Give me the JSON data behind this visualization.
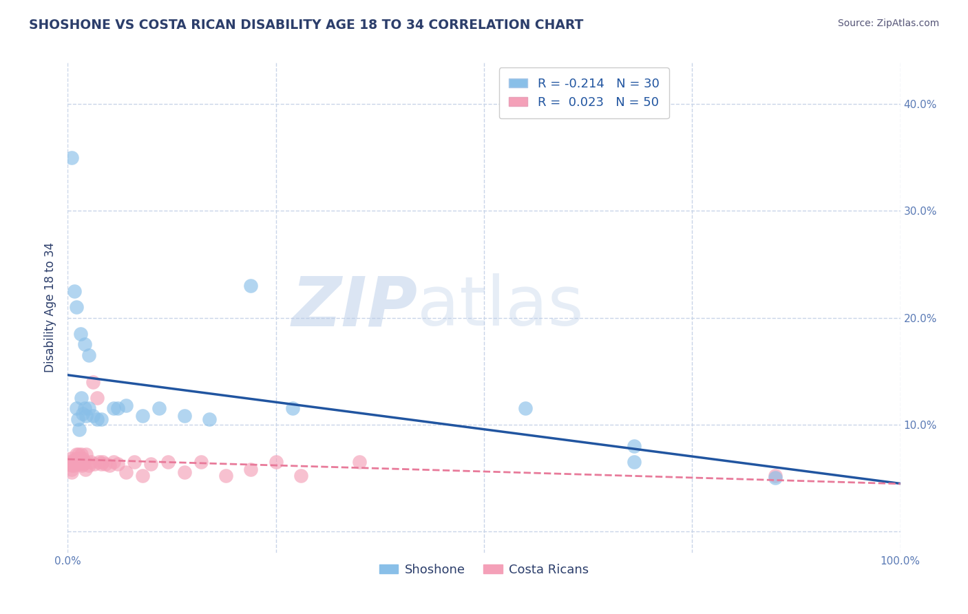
{
  "title": "SHOSHONE VS COSTA RICAN DISABILITY AGE 18 TO 34 CORRELATION CHART",
  "source": "Source: ZipAtlas.com",
  "xlabel": "",
  "ylabel": "Disability Age 18 to 34",
  "xlim": [
    0.0,
    1.0
  ],
  "ylim": [
    -0.02,
    0.44
  ],
  "xticks": [
    0.0,
    0.25,
    0.5,
    0.75,
    1.0
  ],
  "xtick_labels": [
    "0.0%",
    "",
    "",
    "",
    "100.0%"
  ],
  "yticks": [
    0.0,
    0.1,
    0.2,
    0.3,
    0.4
  ],
  "ytick_labels_right": [
    "",
    "10.0%",
    "20.0%",
    "30.0%",
    "40.0%"
  ],
  "legend_r1": "R = -0.214",
  "legend_n1": "N = 30",
  "legend_r2": "R =  0.023",
  "legend_n2": "N = 50",
  "shoshone_color": "#89bfe8",
  "costa_rican_color": "#f4a0b8",
  "shoshone_line_color": "#2155a0",
  "costa_rican_line_color": "#e87a9a",
  "watermark_zip": "ZIP",
  "watermark_atlas": "atlas",
  "background_color": "#ffffff",
  "grid_color": "#c8d4e8",
  "title_color": "#2c3e6b",
  "axis_label_color": "#2c3e6b",
  "tick_color": "#5a7ab5",
  "shoshone_x": [
    0.01,
    0.012,
    0.014,
    0.016,
    0.018,
    0.02,
    0.022,
    0.025,
    0.03,
    0.04,
    0.055,
    0.07,
    0.09,
    0.11,
    0.14,
    0.17,
    0.22,
    0.27,
    0.55,
    0.68,
    0.68,
    0.85,
    0.005,
    0.008,
    0.01,
    0.015,
    0.02,
    0.025,
    0.035,
    0.06
  ],
  "shoshone_y": [
    0.115,
    0.105,
    0.095,
    0.125,
    0.11,
    0.115,
    0.108,
    0.115,
    0.108,
    0.105,
    0.115,
    0.118,
    0.108,
    0.115,
    0.108,
    0.105,
    0.23,
    0.115,
    0.115,
    0.08,
    0.065,
    0.05,
    0.35,
    0.225,
    0.21,
    0.185,
    0.175,
    0.165,
    0.105,
    0.115
  ],
  "costa_rican_x": [
    0.002,
    0.003,
    0.004,
    0.005,
    0.005,
    0.005,
    0.006,
    0.007,
    0.008,
    0.009,
    0.01,
    0.01,
    0.011,
    0.012,
    0.013,
    0.014,
    0.015,
    0.015,
    0.016,
    0.017,
    0.018,
    0.019,
    0.02,
    0.021,
    0.022,
    0.025,
    0.028,
    0.03,
    0.032,
    0.035,
    0.038,
    0.04,
    0.042,
    0.045,
    0.05,
    0.055,
    0.06,
    0.07,
    0.08,
    0.09,
    0.1,
    0.12,
    0.14,
    0.16,
    0.19,
    0.22,
    0.25,
    0.28,
    0.35,
    0.85
  ],
  "costa_rican_y": [
    0.065,
    0.063,
    0.068,
    0.062,
    0.058,
    0.055,
    0.065,
    0.062,
    0.067,
    0.063,
    0.072,
    0.063,
    0.068,
    0.065,
    0.072,
    0.063,
    0.068,
    0.065,
    0.072,
    0.062,
    0.068,
    0.063,
    0.065,
    0.058,
    0.072,
    0.062,
    0.065,
    0.14,
    0.063,
    0.125,
    0.065,
    0.063,
    0.065,
    0.063,
    0.062,
    0.065,
    0.063,
    0.055,
    0.065,
    0.052,
    0.063,
    0.065,
    0.055,
    0.065,
    0.052,
    0.058,
    0.065,
    0.052,
    0.065,
    0.052
  ]
}
